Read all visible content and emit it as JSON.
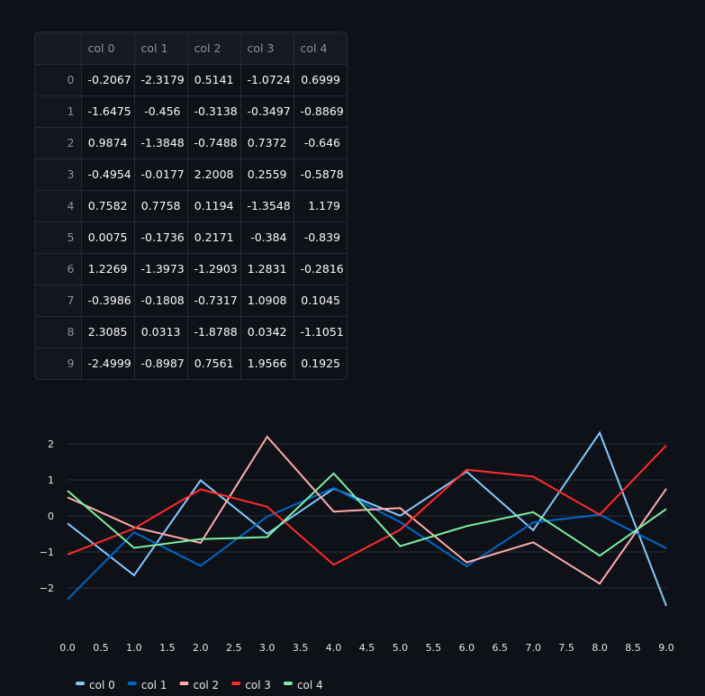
{
  "table": {
    "columns": [
      "",
      "col 0",
      "col 1",
      "col 2",
      "col 3",
      "col 4"
    ],
    "rows": [
      {
        "index": "0",
        "values": [
          "-0.2067",
          "-2.3179",
          "0.5141",
          "-1.0724",
          "0.6999"
        ]
      },
      {
        "index": "1",
        "values": [
          "-1.6475",
          "-0.456",
          "-0.3138",
          "-0.3497",
          "-0.8869"
        ]
      },
      {
        "index": "2",
        "values": [
          "0.9874",
          "-1.3848",
          "-0.7488",
          "0.7372",
          "-0.646"
        ]
      },
      {
        "index": "3",
        "values": [
          "-0.4954",
          "-0.0177",
          "2.2008",
          "0.2559",
          "-0.5878"
        ]
      },
      {
        "index": "4",
        "values": [
          "0.7582",
          "0.7758",
          "0.1194",
          "-1.3548",
          "1.179"
        ]
      },
      {
        "index": "5",
        "values": [
          "0.0075",
          "-0.1736",
          "0.2171",
          "-0.384",
          "-0.839"
        ]
      },
      {
        "index": "6",
        "values": [
          "1.2269",
          "-1.3973",
          "-1.2903",
          "1.2831",
          "-0.2816"
        ]
      },
      {
        "index": "7",
        "values": [
          "-0.3986",
          "-0.1808",
          "-0.7317",
          "1.0908",
          "0.1045"
        ]
      },
      {
        "index": "8",
        "values": [
          "2.3085",
          "0.0313",
          "-1.8788",
          "0.0342",
          "-1.1051"
        ]
      },
      {
        "index": "9",
        "values": [
          "-2.4999",
          "-0.8987",
          "0.7561",
          "1.9566",
          "0.1925"
        ]
      }
    ]
  },
  "chart_data": {
    "type": "line",
    "x": [
      0,
      1,
      2,
      3,
      4,
      5,
      6,
      7,
      8,
      9
    ],
    "xlim": [
      0,
      9
    ],
    "ylim": [
      -2.5,
      2.5
    ],
    "xticks": [
      "0.0",
      "0.5",
      "1.0",
      "1.5",
      "2.0",
      "2.5",
      "3.0",
      "3.5",
      "4.0",
      "4.5",
      "5.0",
      "5.5",
      "6.0",
      "6.5",
      "7.0",
      "7.5",
      "8.0",
      "8.5",
      "9.0"
    ],
    "yticks": [
      "2",
      "1",
      "0",
      "−1",
      "−2"
    ],
    "grid": true,
    "legend_position": "bottom-left",
    "series": [
      {
        "name": "col 0",
        "color": "#83c9ff",
        "values": [
          -0.2067,
          -1.6475,
          0.9874,
          -0.4954,
          0.7582,
          0.0075,
          1.2269,
          -0.3986,
          2.3085,
          -2.4999
        ]
      },
      {
        "name": "col 1",
        "color": "#0068c9",
        "values": [
          -2.3179,
          -0.456,
          -1.3848,
          -0.0177,
          0.7758,
          -0.1736,
          -1.3973,
          -0.1808,
          0.0313,
          -0.8987
        ]
      },
      {
        "name": "col 2",
        "color": "#ffabab",
        "values": [
          0.5141,
          -0.3138,
          -0.7488,
          2.2008,
          0.1194,
          0.2171,
          -1.2903,
          -0.7317,
          -1.8788,
          0.7561
        ]
      },
      {
        "name": "col 3",
        "color": "#ff2b2b",
        "values": [
          -1.0724,
          -0.3497,
          0.7372,
          0.2559,
          -1.3548,
          -0.384,
          1.2831,
          1.0908,
          0.0342,
          1.9566
        ]
      },
      {
        "name": "col 4",
        "color": "#7defa1",
        "values": [
          0.6999,
          -0.8869,
          -0.646,
          -0.5878,
          1.179,
          -0.839,
          -0.2816,
          0.1045,
          -1.1051,
          0.1925
        ]
      }
    ]
  }
}
